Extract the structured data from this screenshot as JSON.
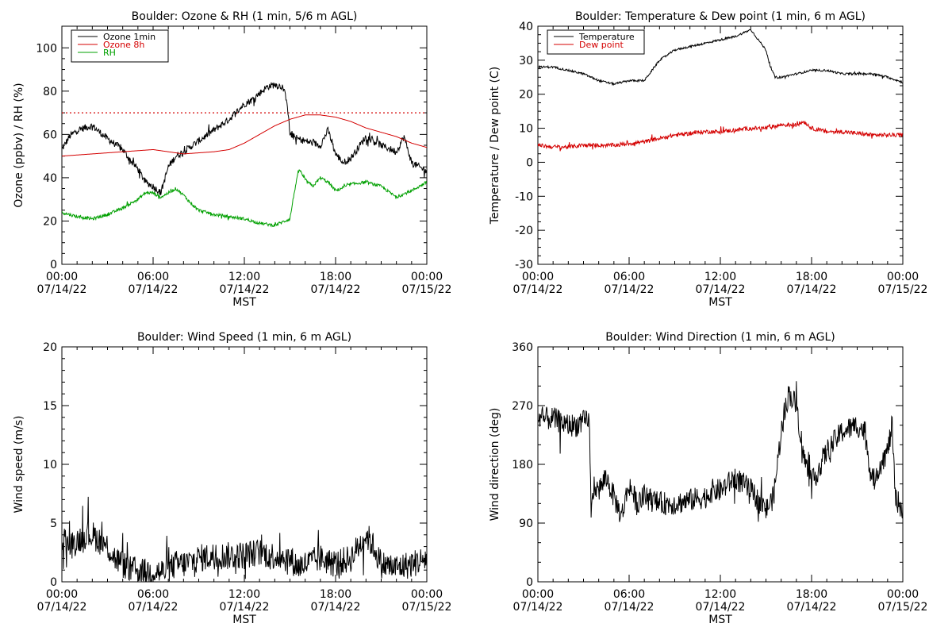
{
  "colors": {
    "black": "#000000",
    "red": "#d40000",
    "green": "#00a000",
    "background": "#ffffff"
  },
  "chart_data": [
    {
      "id": "ozone",
      "type": "line",
      "title": "Boulder: Ozone & RH (1 min, 5/6 m AGL)",
      "xlabel": "MST",
      "ylabel": "Ozone (ppbv) / RH (%)",
      "xlim": [
        0,
        24
      ],
      "ylim": [
        0,
        110
      ],
      "yticks": [
        0,
        20,
        40,
        60,
        80,
        100
      ],
      "xticks": [
        {
          "hour": 0,
          "time": "00:00",
          "date": "07/14/22"
        },
        {
          "hour": 6,
          "time": "06:00",
          "date": "07/14/22"
        },
        {
          "hour": 12,
          "time": "12:00",
          "date": "07/14/22"
        },
        {
          "hour": 18,
          "time": "18:00",
          "date": "07/14/22"
        },
        {
          "hour": 24,
          "time": "00:00",
          "date": "07/15/22"
        }
      ],
      "grid": false,
      "legend": "top-left",
      "reference_line": {
        "y": 70,
        "style": "dotted",
        "color": "#d40000"
      },
      "series": [
        {
          "name": "Ozone 1min",
          "color": "#000000",
          "noise": 1.6,
          "x": [
            0,
            0.5,
            1,
            2,
            3,
            4,
            4.5,
            5,
            5.5,
            6,
            6.5,
            7,
            7.5,
            8,
            9,
            10,
            11,
            12,
            12.5,
            13,
            13.5,
            14,
            14.5,
            14.8,
            15,
            15.5,
            16,
            17,
            17.5,
            18,
            18.5,
            19,
            20,
            21,
            22,
            22.5,
            23,
            23.5,
            24
          ],
          "y": [
            53,
            59,
            62,
            64,
            58,
            53,
            48,
            44,
            38,
            36,
            33,
            45,
            50,
            52,
            57,
            62,
            67,
            74,
            76,
            79,
            82,
            83,
            82,
            76,
            60,
            58,
            57,
            55,
            62,
            51,
            47,
            49,
            59,
            55,
            52,
            59,
            47,
            45,
            43
          ]
        },
        {
          "name": "Ozone 8h",
          "color": "#d40000",
          "noise": 0,
          "x": [
            0,
            2,
            4,
            6,
            8,
            10,
            11,
            12,
            13,
            14,
            15,
            16,
            17,
            18,
            19,
            20,
            21,
            22,
            23,
            24
          ],
          "y": [
            50,
            51,
            52,
            53,
            51,
            52,
            53,
            56,
            60,
            64,
            67,
            69,
            69,
            68,
            66,
            63,
            61,
            59,
            56,
            54
          ]
        },
        {
          "name": "RH",
          "color": "#00a000",
          "noise": 0.7,
          "x": [
            0,
            1,
            2,
            3,
            4,
            5,
            5.5,
            6,
            6.5,
            7,
            7.5,
            8,
            8.5,
            9,
            10,
            11,
            12,
            13,
            14,
            15,
            15.3,
            15.6,
            16,
            16.5,
            17,
            17.5,
            18,
            19,
            20,
            21,
            22,
            23,
            24
          ],
          "y": [
            24,
            22,
            21,
            23,
            26,
            30,
            33,
            33,
            31,
            33,
            35,
            32,
            28,
            25,
            23,
            22,
            21,
            19,
            18,
            21,
            34,
            44,
            39,
            36,
            40,
            38,
            34,
            37,
            38,
            36,
            31,
            34,
            38
          ]
        }
      ]
    },
    {
      "id": "temperature",
      "type": "line",
      "title": "Boulder: Temperature & Dew point (1 min, 6 m AGL)",
      "xlabel": "MST",
      "ylabel": "Temperature / Dew point (C)",
      "xlim": [
        0,
        24
      ],
      "ylim": [
        -30,
        40
      ],
      "yticks": [
        -30,
        -20,
        -10,
        0,
        10,
        20,
        30,
        40
      ],
      "xticks": [
        {
          "hour": 0,
          "time": "00:00",
          "date": "07/14/22"
        },
        {
          "hour": 6,
          "time": "06:00",
          "date": "07/14/22"
        },
        {
          "hour": 12,
          "time": "12:00",
          "date": "07/14/22"
        },
        {
          "hour": 18,
          "time": "18:00",
          "date": "07/14/22"
        },
        {
          "hour": 24,
          "time": "00:00",
          "date": "07/15/22"
        }
      ],
      "grid": false,
      "legend": "top-left",
      "series": [
        {
          "name": "Temperature",
          "color": "#000000",
          "noise": 0.3,
          "x": [
            0,
            1,
            2,
            3,
            4,
            5,
            6,
            6.5,
            7,
            7.5,
            8,
            9,
            10,
            11,
            12,
            13,
            13.5,
            14,
            14.5,
            15,
            15.3,
            15.6,
            16,
            17,
            18,
            19,
            20,
            21,
            22,
            23,
            24
          ],
          "y": [
            28,
            28,
            27,
            26,
            24,
            23,
            24,
            24,
            24,
            27,
            30,
            33,
            34,
            35,
            36,
            37,
            38,
            39,
            36,
            33,
            28,
            25,
            25,
            26,
            27,
            27,
            26,
            26,
            26,
            25,
            23.5
          ]
        },
        {
          "name": "Dew point",
          "color": "#d40000",
          "noise": 0.6,
          "x": [
            0,
            1,
            2,
            3,
            4,
            5,
            6,
            7,
            8,
            9,
            10,
            11,
            12,
            13,
            14,
            15,
            16,
            17,
            17.5,
            18,
            19,
            20,
            21,
            22,
            23,
            24
          ],
          "y": [
            5,
            4.5,
            4.5,
            5,
            5,
            5,
            5.5,
            6,
            7,
            8,
            8.5,
            9,
            9,
            9.5,
            10,
            10,
            11,
            11,
            12,
            10,
            9,
            9,
            8.5,
            8,
            8,
            8
          ]
        }
      ]
    },
    {
      "id": "wind-speed",
      "type": "line",
      "title": "Boulder: Wind Speed (1 min, 6 m AGL)",
      "xlabel": "MST",
      "ylabel": "Wind speed (m/s)",
      "xlim": [
        0,
        24
      ],
      "ylim": [
        0,
        20
      ],
      "yticks": [
        0,
        5,
        10,
        15,
        20
      ],
      "xticks": [
        {
          "hour": 0,
          "time": "00:00",
          "date": "07/14/22"
        },
        {
          "hour": 6,
          "time": "06:00",
          "date": "07/14/22"
        },
        {
          "hour": 12,
          "time": "12:00",
          "date": "07/14/22"
        },
        {
          "hour": 18,
          "time": "18:00",
          "date": "07/14/22"
        },
        {
          "hour": 24,
          "time": "00:00",
          "date": "07/15/22"
        }
      ],
      "grid": false,
      "series": [
        {
          "name": "",
          "color": "#000000",
          "noise": 1.2,
          "x": [
            0,
            0.5,
            1,
            1.5,
            2,
            2.5,
            3,
            3.5,
            4,
            4.5,
            5,
            5.5,
            6,
            6.5,
            7,
            7.5,
            8,
            9,
            10,
            11,
            12,
            13,
            14,
            15,
            15.5,
            16,
            17,
            18,
            19,
            19.5,
            20,
            20.5,
            21,
            22,
            23,
            24
          ],
          "y": [
            4,
            3,
            3.5,
            4,
            4,
            3.5,
            3,
            2,
            1.5,
            1,
            1,
            0.8,
            1,
            0.8,
            1,
            1.5,
            1.5,
            2,
            2.2,
            2.2,
            2.3,
            2.5,
            2.2,
            2,
            1.3,
            1.5,
            2,
            1.5,
            2,
            3,
            4,
            3,
            1.5,
            1.2,
            1.5,
            2
          ]
        }
      ]
    },
    {
      "id": "wind-direction",
      "type": "line",
      "title": "Boulder: Wind Direction (1 min, 6 m AGL)",
      "xlabel": "MST",
      "ylabel": "Wind direction (deg)",
      "xlim": [
        0,
        24
      ],
      "ylim": [
        0,
        360
      ],
      "yticks": [
        0,
        90,
        180,
        270,
        360
      ],
      "xticks": [
        {
          "hour": 0,
          "time": "00:00",
          "date": "07/14/22"
        },
        {
          "hour": 6,
          "time": "06:00",
          "date": "07/14/22"
        },
        {
          "hour": 12,
          "time": "12:00",
          "date": "07/14/22"
        },
        {
          "hour": 18,
          "time": "18:00",
          "date": "07/14/22"
        },
        {
          "hour": 24,
          "time": "00:00",
          "date": "07/15/22"
        }
      ],
      "grid": false,
      "series": [
        {
          "name": "",
          "color": "#000000",
          "noise": 18,
          "x": [
            0,
            0.5,
            1,
            1.5,
            2,
            2.5,
            3,
            3.4,
            3.5,
            3.7,
            4,
            4.5,
            5,
            5.5,
            6,
            6.5,
            7,
            8,
            9,
            10,
            11,
            11.5,
            12,
            12.5,
            13,
            13.5,
            14,
            15,
            15.5,
            16,
            16.5,
            17,
            17.5,
            18,
            19,
            20,
            21,
            21.5,
            22,
            22.5,
            23,
            23.3,
            23.5,
            24
          ],
          "y": [
            245,
            250,
            250,
            245,
            240,
            240,
            245,
            245,
            100,
            150,
            140,
            160,
            130,
            100,
            150,
            120,
            130,
            120,
            120,
            125,
            130,
            140,
            140,
            150,
            160,
            150,
            140,
            110,
            130,
            230,
            290,
            270,
            190,
            150,
            200,
            230,
            240,
            230,
            150,
            180,
            200,
            240,
            130,
            110
          ]
        }
      ]
    }
  ]
}
